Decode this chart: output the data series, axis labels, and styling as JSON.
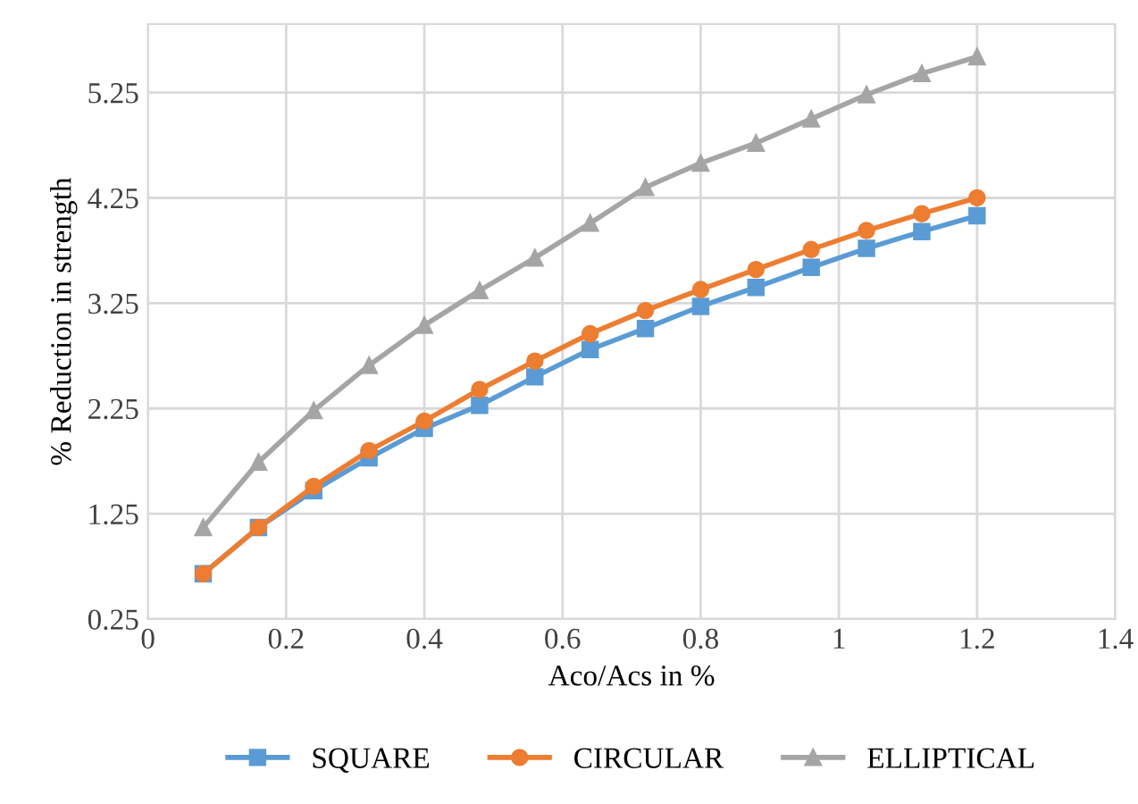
{
  "chart_data": {
    "type": "line",
    "xlabel": "Aco/Acs in %",
    "ylabel": "% Reduction in strength",
    "x": [
      0.08,
      0.16,
      0.24,
      0.32,
      0.4,
      0.48,
      0.56,
      0.64,
      0.72,
      0.8,
      0.88,
      0.96,
      1.04,
      1.12,
      1.2
    ],
    "series": [
      {
        "name": "SQUARE",
        "color": "#5b9bd5",
        "marker": "square",
        "values": [
          0.68,
          1.12,
          1.47,
          1.78,
          2.06,
          2.28,
          2.55,
          2.81,
          3.01,
          3.22,
          3.4,
          3.59,
          3.77,
          3.93,
          4.08
        ]
      },
      {
        "name": "CIRCULAR",
        "color": "#ed7d31",
        "marker": "circle",
        "values": [
          0.68,
          1.12,
          1.51,
          1.85,
          2.13,
          2.43,
          2.7,
          2.96,
          3.18,
          3.38,
          3.57,
          3.76,
          3.94,
          4.1,
          4.25
        ]
      },
      {
        "name": "ELLIPTICAL",
        "color": "#a5a5a5",
        "marker": "triangle",
        "values": [
          1.12,
          1.74,
          2.23,
          2.66,
          3.04,
          3.37,
          3.68,
          4.01,
          4.35,
          4.58,
          4.77,
          5.0,
          5.23,
          5.43,
          5.59
        ]
      }
    ],
    "xlim": [
      0,
      1.4
    ],
    "xticks": [
      0,
      0.2,
      0.4,
      0.6,
      0.8,
      1,
      1.2,
      1.4
    ],
    "ylim": [
      0.25,
      5.9
    ],
    "yticks": [
      0.25,
      1.25,
      2.25,
      3.25,
      4.25,
      5.25
    ],
    "grid": true,
    "legend": "bottom",
    "line_style": "solid"
  }
}
